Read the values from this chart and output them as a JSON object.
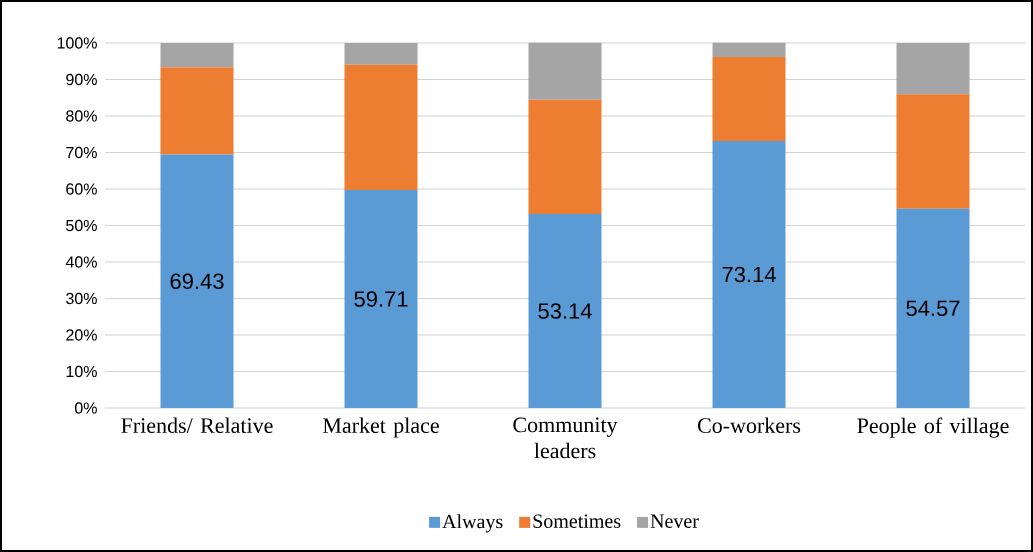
{
  "chart_data": {
    "type": "bar",
    "stacked": true,
    "categories": [
      "Friends/ Relative",
      "Market place",
      "Community leaders",
      "Co-workers",
      "People of village"
    ],
    "series": [
      {
        "name": "Always",
        "color": "#5b9bd5",
        "values": [
          69.43,
          59.71,
          53.14,
          73.14,
          54.57
        ],
        "value_labels": [
          "69.43",
          "59.71",
          "53.14",
          "73.14",
          "54.57"
        ]
      },
      {
        "name": "Sometimes",
        "color": "#ed7d31",
        "values": [
          23.9,
          34.3,
          31.3,
          23.0,
          31.4
        ]
      },
      {
        "name": "Never",
        "color": "#a5a5a5",
        "values": [
          6.7,
          6.0,
          15.6,
          3.9,
          14.0
        ]
      }
    ],
    "ylim": [
      0,
      100
    ],
    "yticks": [
      {
        "value": 0,
        "label": "0%"
      },
      {
        "value": 10,
        "label": "10%"
      },
      {
        "value": 20,
        "label": "20%"
      },
      {
        "value": 30,
        "label": "30%"
      },
      {
        "value": 40,
        "label": "40%"
      },
      {
        "value": 50,
        "label": "50%"
      },
      {
        "value": 60,
        "label": "60%"
      },
      {
        "value": 70,
        "label": "70%"
      },
      {
        "value": 80,
        "label": "80%"
      },
      {
        "value": 90,
        "label": "90%"
      },
      {
        "value": 100,
        "label": "100%"
      }
    ],
    "grid": "y",
    "legend": "bottom"
  }
}
